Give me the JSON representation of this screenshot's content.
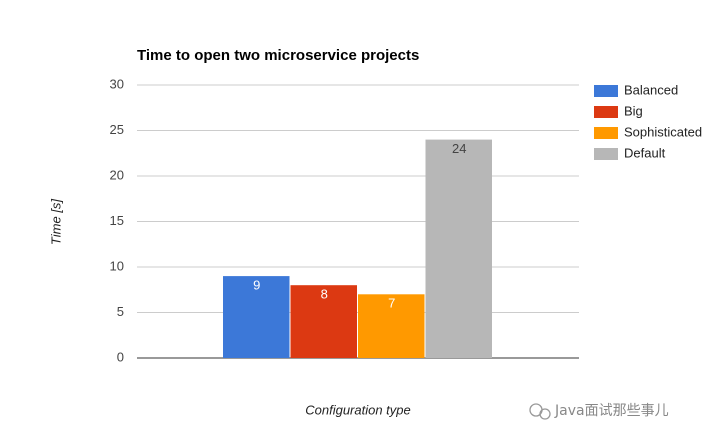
{
  "chart_data": {
    "type": "bar",
    "title": "Time to open two microservice projects",
    "x_label": "Configuration type",
    "y_label": "Time [s]",
    "categories": [
      null
    ],
    "series": [
      {
        "name": "Balanced",
        "color": "#3c78d8",
        "values": [
          9
        ]
      },
      {
        "name": "Big",
        "color": "#dc3912",
        "values": [
          8
        ]
      },
      {
        "name": "Sophisticated",
        "color": "#ff9900",
        "values": [
          7
        ]
      },
      {
        "name": "Default",
        "color": "#b7b7b7",
        "values": [
          24
        ]
      }
    ],
    "ylim": [
      0,
      30
    ],
    "yticks": [
      0,
      5,
      10,
      15,
      20,
      25,
      30
    ],
    "grid": true,
    "legend": "right"
  },
  "watermark": "Java面试那些事儿"
}
